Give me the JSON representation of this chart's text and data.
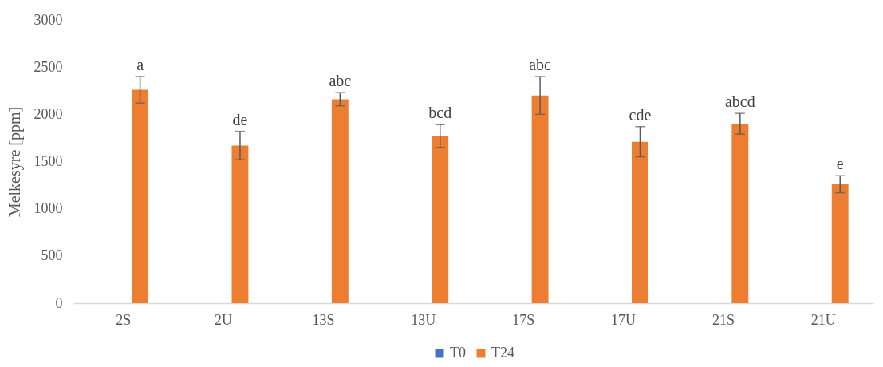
{
  "chart_data": {
    "type": "bar",
    "ylabel": "Melkesyre [ppm]",
    "categories": [
      "2S",
      "2U",
      "13S",
      "13U",
      "17S",
      "17U",
      "21S",
      "21U"
    ],
    "series": [
      {
        "name": "T0",
        "color": "#4472c4",
        "values": [
          0,
          0,
          0,
          0,
          0,
          0,
          0,
          0
        ]
      },
      {
        "name": "T24",
        "color": "#ed7d31",
        "values": [
          2260,
          1670,
          2160,
          1770,
          2200,
          1710,
          1900,
          1260
        ],
        "errors": [
          140,
          150,
          70,
          120,
          200,
          160,
          110,
          90
        ]
      }
    ],
    "annotations": [
      "a",
      "de",
      "abc",
      "bcd",
      "abc",
      "cde",
      "abcd",
      "e"
    ],
    "ylim": [
      0,
      3000
    ],
    "yticks": [
      0,
      500,
      1000,
      1500,
      2000,
      2500,
      3000
    ],
    "grid": false,
    "legend": "bottom"
  }
}
